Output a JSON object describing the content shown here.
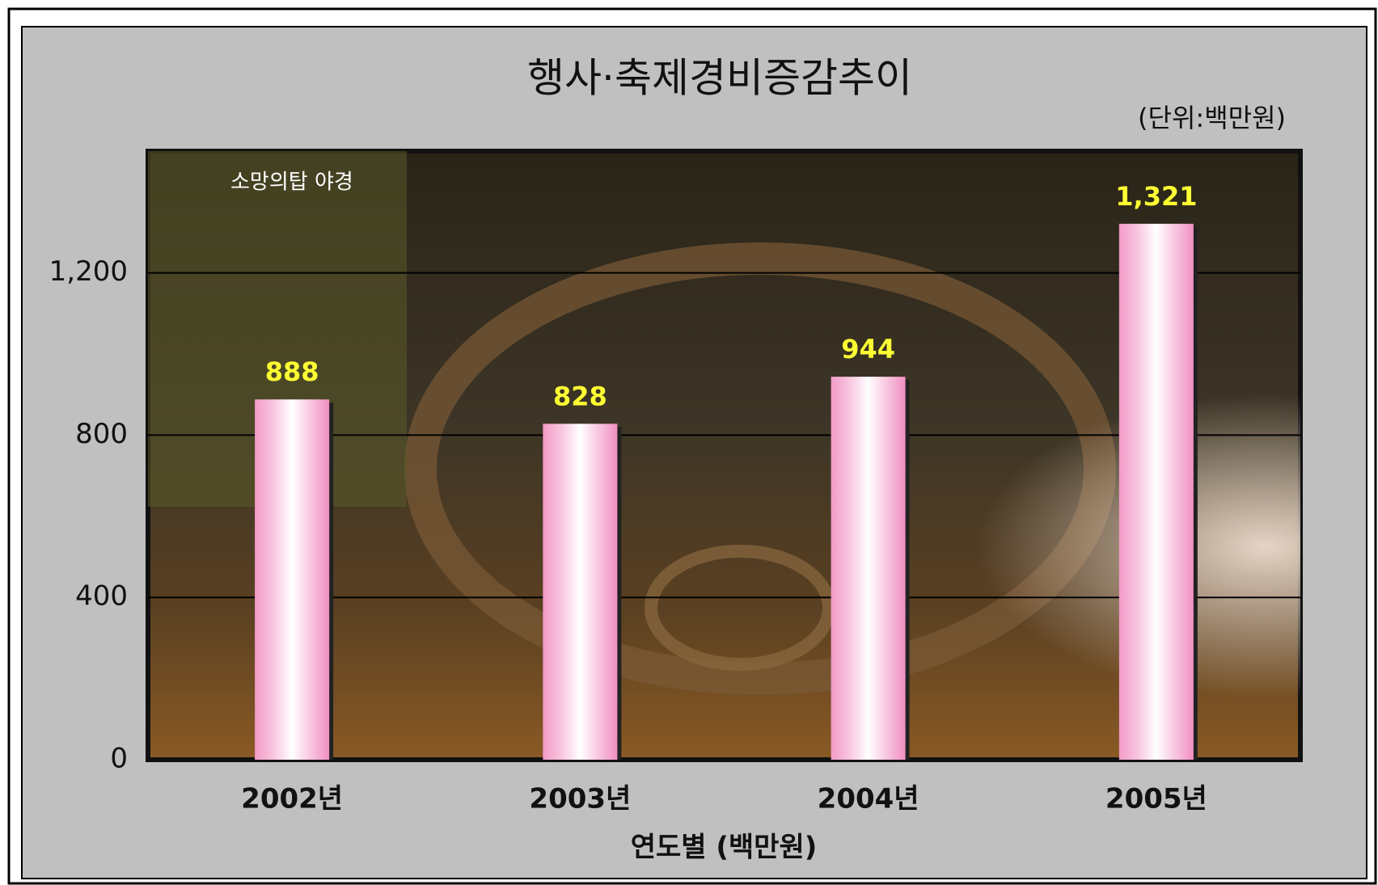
{
  "chart_data": {
    "type": "bar",
    "title": "행사·축제경비증감추이",
    "subtitle": "(단위:백만원)",
    "annotation": "소망의탑 야경",
    "x_label": "연도별 (백만원)",
    "categories": [
      "2002년",
      "2003년",
      "2004년",
      "2005년"
    ],
    "values": [
      888,
      828,
      944,
      1321
    ],
    "value_labels": [
      "888",
      "828",
      "944",
      "1,321"
    ],
    "color": "#f4a6cf",
    "ylim": [
      0,
      1500
    ],
    "yticks": [
      0,
      400,
      800,
      {
        "value": 1200,
        "label": "1,200"
      }
    ],
    "grid": true
  }
}
